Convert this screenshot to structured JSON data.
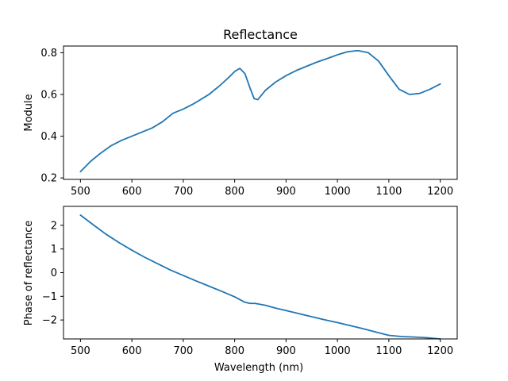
{
  "figure": {
    "background": "#ffffff",
    "line_color": "#1f77b4"
  },
  "chart_data": [
    {
      "type": "line",
      "title": "Reflectance",
      "xlabel": "",
      "ylabel": "Module",
      "xlim": [
        467,
        1233
      ],
      "ylim": [
        0.193,
        0.832
      ],
      "xticks": [
        500,
        600,
        700,
        800,
        900,
        1000,
        1100,
        1200
      ],
      "yticks": [
        0.2,
        0.4,
        0.6,
        0.8
      ],
      "ytick_labels": [
        "0.2",
        "0.4",
        "0.6",
        "0.8"
      ],
      "grid": false,
      "series": [
        {
          "name": "",
          "x": [
            500,
            520,
            540,
            560,
            580,
            600,
            620,
            640,
            660,
            670,
            680,
            700,
            720,
            740,
            750,
            770,
            790,
            800,
            810,
            820,
            830,
            838,
            845,
            860,
            880,
            900,
            920,
            940,
            960,
            980,
            1000,
            1020,
            1040,
            1060,
            1080,
            1100,
            1120,
            1140,
            1160,
            1180,
            1200
          ],
          "y": [
            0.23,
            0.28,
            0.32,
            0.355,
            0.38,
            0.4,
            0.42,
            0.44,
            0.47,
            0.49,
            0.51,
            0.53,
            0.555,
            0.585,
            0.6,
            0.64,
            0.685,
            0.71,
            0.725,
            0.7,
            0.63,
            0.58,
            0.575,
            0.62,
            0.66,
            0.69,
            0.715,
            0.735,
            0.755,
            0.772,
            0.79,
            0.805,
            0.81,
            0.8,
            0.76,
            0.69,
            0.625,
            0.6,
            0.605,
            0.625,
            0.65
          ]
        }
      ]
    },
    {
      "type": "line",
      "title": "",
      "xlabel": "Wavelength (nm)",
      "ylabel": "Phase of reflectance",
      "xlim": [
        467,
        1233
      ],
      "ylim": [
        -2.8,
        2.8
      ],
      "xticks": [
        500,
        600,
        700,
        800,
        900,
        1000,
        1100,
        1200
      ],
      "yticks": [
        -2,
        -1,
        0,
        1,
        2
      ],
      "ytick_labels": [
        "−2",
        "−1",
        "0",
        "1",
        "2"
      ],
      "grid": false,
      "series": [
        {
          "name": "",
          "x": [
            500,
            525,
            550,
            575,
            600,
            625,
            650,
            675,
            700,
            725,
            750,
            775,
            800,
            820,
            830,
            840,
            860,
            880,
            900,
            925,
            950,
            975,
            1000,
            1025,
            1050,
            1075,
            1100,
            1125,
            1150,
            1175,
            1200
          ],
          "y": [
            2.43,
            2.02,
            1.62,
            1.27,
            0.95,
            0.65,
            0.38,
            0.11,
            -0.12,
            -0.35,
            -0.57,
            -0.79,
            -1.02,
            -1.25,
            -1.3,
            -1.3,
            -1.38,
            -1.5,
            -1.6,
            -1.73,
            -1.86,
            -1.99,
            -2.11,
            -2.24,
            -2.37,
            -2.51,
            -2.65,
            -2.7,
            -2.72,
            -2.75,
            -2.8
          ]
        }
      ]
    }
  ]
}
